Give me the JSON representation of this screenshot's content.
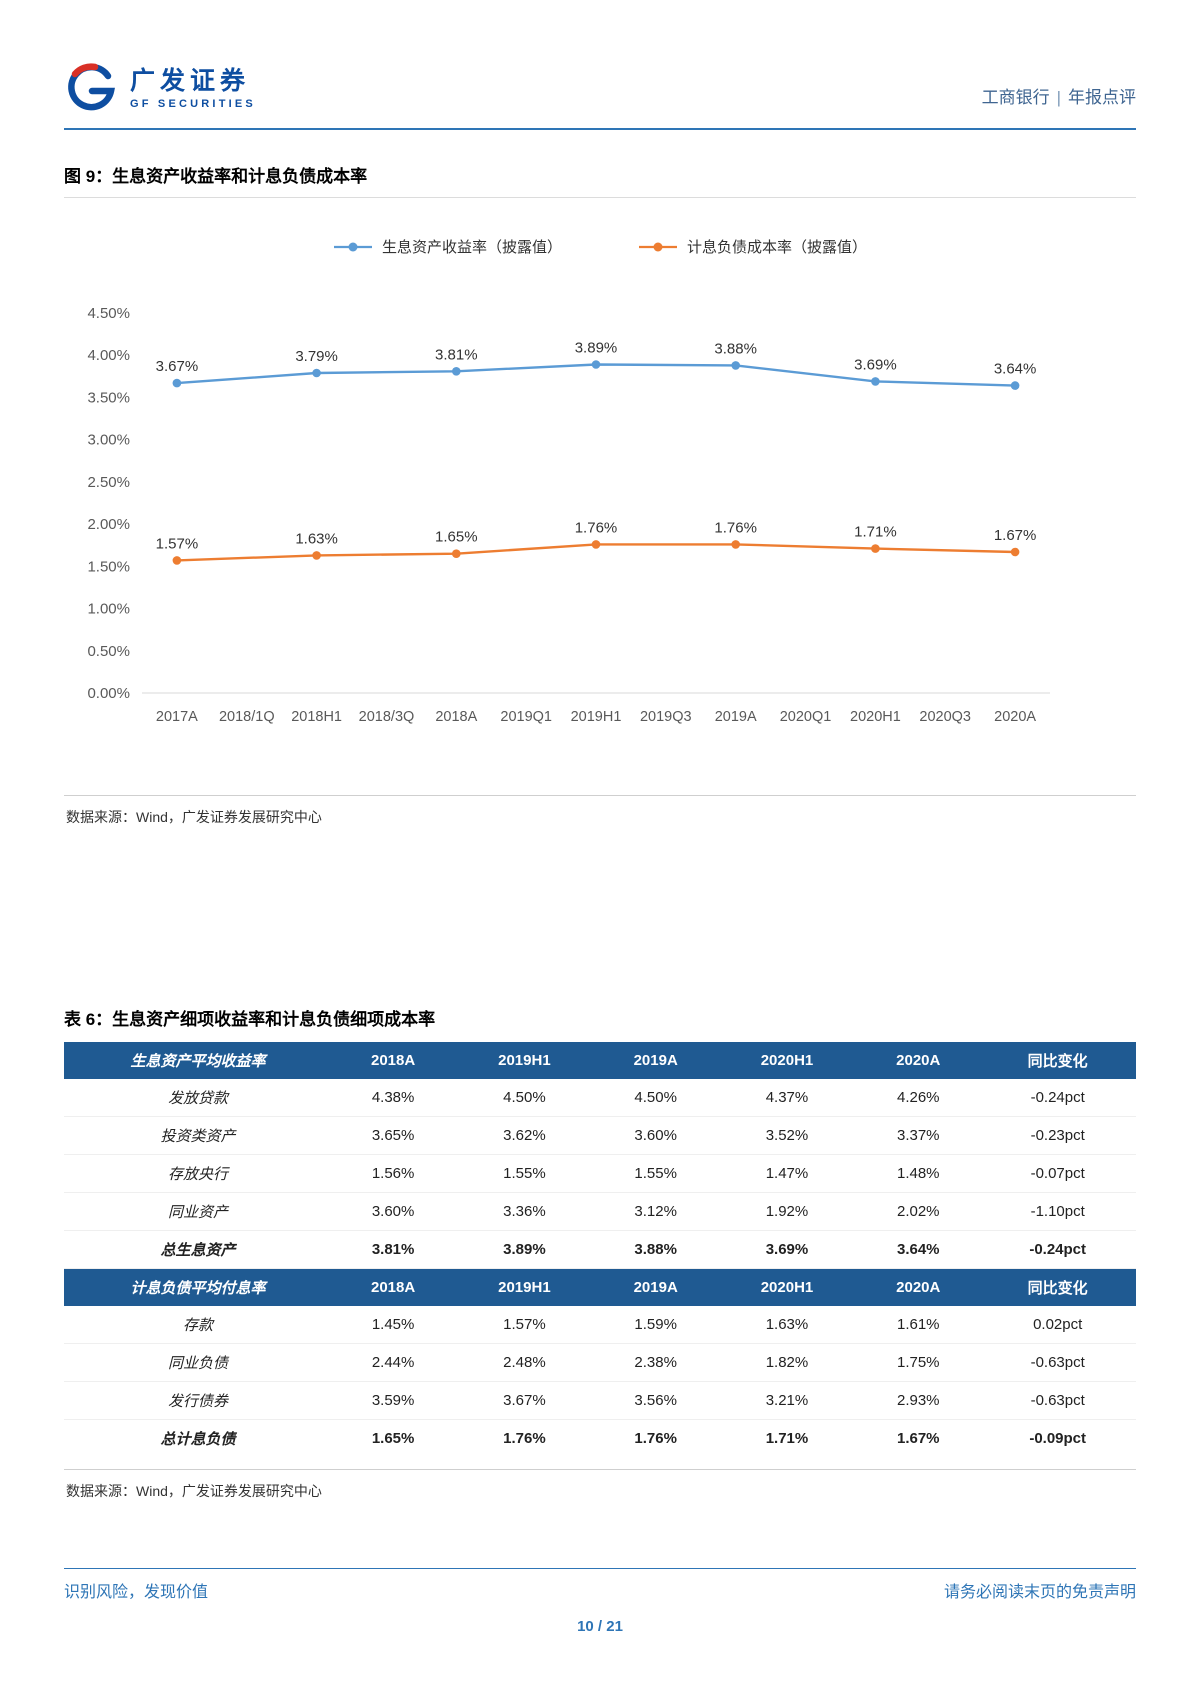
{
  "header": {
    "brand_cn": "广发证券",
    "brand_en": "GF SECURITIES",
    "doc_subject": "工商银行",
    "separator": "|",
    "doc_type": "年报点评"
  },
  "figure": {
    "title": "图 9：生息资产收益率和计息负债成本率",
    "source": "数据来源：Wind，广发证券发展研究中心"
  },
  "chart_data": {
    "type": "line",
    "title": "生息资产收益率和计息负债成本率",
    "x_categories": [
      "2017A",
      "2018/1Q",
      "2018H1",
      "2018/3Q",
      "2018A",
      "2019Q1",
      "2019H1",
      "2019Q3",
      "2019A",
      "2020Q1",
      "2020H1",
      "2020Q3",
      "2020A"
    ],
    "point_category_indices": [
      0,
      2,
      4,
      6,
      8,
      10,
      12
    ],
    "series": [
      {
        "name": "生息资产收益率（披露值）",
        "color": "#5B9BD5",
        "values": [
          3.67,
          3.79,
          3.81,
          3.89,
          3.88,
          3.69,
          3.64
        ],
        "labels": [
          "3.67%",
          "3.79%",
          "3.81%",
          "3.89%",
          "3.88%",
          "3.69%",
          "3.64%"
        ]
      },
      {
        "name": "计息负债成本率（披露值）",
        "color": "#ED7D31",
        "values": [
          1.57,
          1.63,
          1.65,
          1.76,
          1.76,
          1.71,
          1.67
        ],
        "labels": [
          "1.57%",
          "1.63%",
          "1.65%",
          "1.76%",
          "1.76%",
          "1.71%",
          "1.67%"
        ]
      }
    ],
    "ylim": [
      0,
      4.5
    ],
    "y_ticks": [
      "4.50%",
      "4.00%",
      "3.50%",
      "3.00%",
      "2.50%",
      "2.00%",
      "1.50%",
      "1.00%",
      "0.50%",
      "0.00%"
    ],
    "grid": false,
    "legend_position": "top"
  },
  "table": {
    "title": "表 6：生息资产细项收益率和计息负债细项成本率",
    "source": "数据来源：Wind，广发证券发展研究中心",
    "sections": [
      {
        "header": "生息资产平均收益率",
        "columns": [
          "2018A",
          "2019H1",
          "2019A",
          "2020H1",
          "2020A",
          "同比变化"
        ],
        "rows": [
          {
            "label": "发放贷款",
            "values": [
              "4.38%",
              "4.50%",
              "4.50%",
              "4.37%",
              "4.26%",
              "-0.24pct"
            ],
            "total": false
          },
          {
            "label": "投资类资产",
            "values": [
              "3.65%",
              "3.62%",
              "3.60%",
              "3.52%",
              "3.37%",
              "-0.23pct"
            ],
            "total": false
          },
          {
            "label": "存放央行",
            "values": [
              "1.56%",
              "1.55%",
              "1.55%",
              "1.47%",
              "1.48%",
              "-0.07pct"
            ],
            "total": false
          },
          {
            "label": "同业资产",
            "values": [
              "3.60%",
              "3.36%",
              "3.12%",
              "1.92%",
              "2.02%",
              "-1.10pct"
            ],
            "total": false
          },
          {
            "label": "总生息资产",
            "values": [
              "3.81%",
              "3.89%",
              "3.88%",
              "3.69%",
              "3.64%",
              "-0.24pct"
            ],
            "total": true
          }
        ]
      },
      {
        "header": "计息负债平均付息率",
        "columns": [
          "2018A",
          "2019H1",
          "2019A",
          "2020H1",
          "2020A",
          "同比变化"
        ],
        "rows": [
          {
            "label": "存款",
            "values": [
              "1.45%",
              "1.57%",
              "1.59%",
              "1.63%",
              "1.61%",
              "0.02pct"
            ],
            "total": false
          },
          {
            "label": "同业负债",
            "values": [
              "2.44%",
              "2.48%",
              "2.38%",
              "1.82%",
              "1.75%",
              "-0.63pct"
            ],
            "total": false
          },
          {
            "label": "发行债券",
            "values": [
              "3.59%",
              "3.67%",
              "3.56%",
              "3.21%",
              "2.93%",
              "-0.63pct"
            ],
            "total": false
          },
          {
            "label": "总计息负债",
            "values": [
              "1.65%",
              "1.76%",
              "1.76%",
              "1.71%",
              "1.67%",
              "-0.09pct"
            ],
            "total": true
          }
        ]
      }
    ]
  },
  "footer": {
    "left": "识别风险，发现价值",
    "right": "请务必阅读末页的免责声明",
    "page": "10 / 21"
  },
  "colors": {
    "accent_blue": "#2e75b6",
    "brand_blue": "#0e4ea1",
    "brand_red": "#d93026",
    "series_blue": "#5B9BD5",
    "series_orange": "#ED7D31",
    "table_header_bg": "#1f5a92"
  }
}
